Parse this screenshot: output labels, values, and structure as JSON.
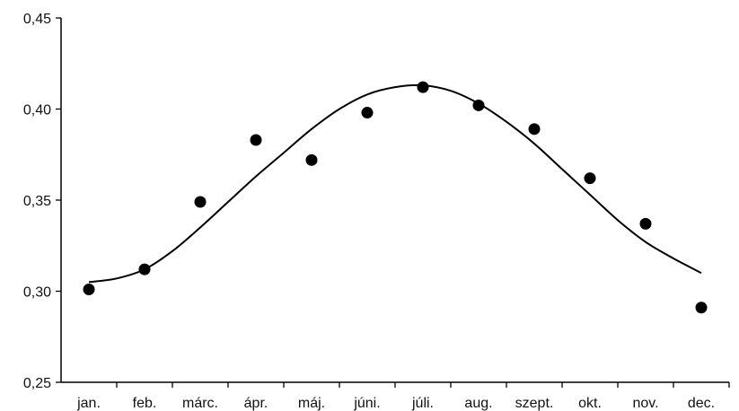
{
  "chart_data": {
    "type": "scatter",
    "title": "",
    "xlabel": "",
    "ylabel": "",
    "categories": [
      "jan.",
      "feb.",
      "márc.",
      "ápr.",
      "máj.",
      "júni.",
      "júli.",
      "aug.",
      "szept.",
      "okt.",
      "nov.",
      "dec."
    ],
    "ylim": [
      0.25,
      0.45
    ],
    "yticks": [
      0.25,
      0.3,
      0.35,
      0.4,
      0.45
    ],
    "ytick_labels": [
      "0,25",
      "0,30",
      "0,35",
      "0,40",
      "0,45"
    ],
    "grid": false,
    "legend": "none",
    "series": [
      {
        "type": "scatter",
        "values": [
          0.301,
          0.312,
          0.349,
          0.383,
          0.372,
          0.398,
          0.412,
          0.402,
          0.389,
          0.362,
          0.337,
          0.291
        ]
      },
      {
        "type": "line",
        "smooth": true,
        "x": [
          0.0,
          0.5,
          1.0,
          1.5,
          2.0,
          2.5,
          3.0,
          3.5,
          4.0,
          4.5,
          5.0,
          5.5,
          6.0,
          6.5,
          7.0,
          7.5,
          8.0,
          8.5,
          9.0,
          9.5,
          10.0,
          10.5,
          11.0
        ],
        "values": [
          0.305,
          0.307,
          0.312,
          0.322,
          0.335,
          0.349,
          0.363,
          0.376,
          0.389,
          0.4,
          0.408,
          0.412,
          0.413,
          0.41,
          0.403,
          0.393,
          0.381,
          0.367,
          0.353,
          0.339,
          0.327,
          0.318,
          0.31
        ]
      }
    ]
  }
}
